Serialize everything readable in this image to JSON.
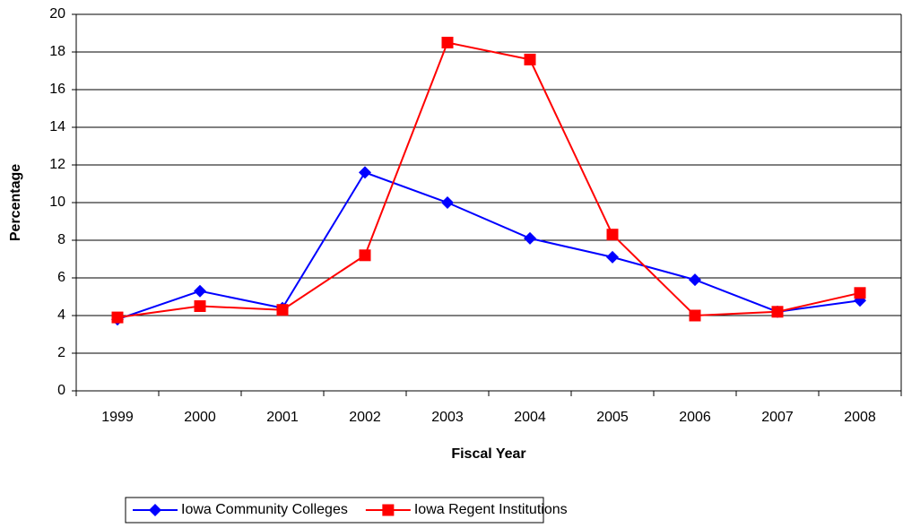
{
  "chart_data": {
    "type": "line",
    "x_label": "Fiscal Year",
    "y_label": "Percentage",
    "categories": [
      "1999",
      "2000",
      "2001",
      "2002",
      "2003",
      "2004",
      "2005",
      "2006",
      "2007",
      "2008"
    ],
    "series": [
      {
        "name": "Iowa Community Colleges",
        "color": "#0000ff",
        "marker": "diamond",
        "values": [
          3.8,
          5.3,
          4.4,
          11.6,
          10.0,
          8.1,
          7.1,
          5.9,
          4.2,
          4.8
        ]
      },
      {
        "name": "Iowa Regent Institutions",
        "color": "#ff0000",
        "marker": "square",
        "values": [
          3.9,
          4.5,
          4.3,
          7.2,
          18.5,
          17.6,
          8.3,
          4.0,
          4.2,
          5.2
        ]
      }
    ],
    "ylim": [
      0,
      20
    ],
    "yticks": [
      0,
      2,
      4,
      6,
      8,
      10,
      12,
      14,
      16,
      18,
      20
    ],
    "grid": true,
    "legend": "bottom"
  }
}
